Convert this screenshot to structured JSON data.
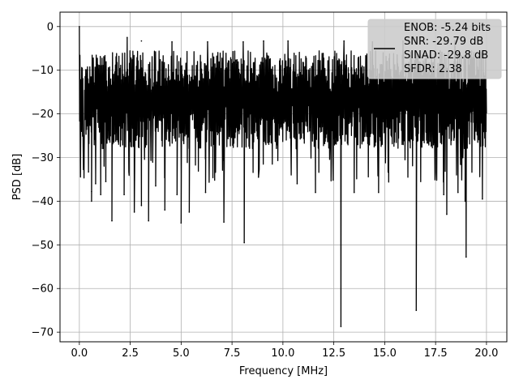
{
  "chart_data": {
    "type": "line",
    "title": "",
    "xlabel": "Frequency [MHz]",
    "ylabel": "PSD [dB]",
    "xlim": [
      -0.95,
      21.0
    ],
    "ylim": [
      -72.2,
      3.3
    ],
    "x_ticks": [
      0.0,
      2.5,
      5.0,
      7.5,
      10.0,
      12.5,
      15.0,
      17.5,
      20.0
    ],
    "x_tick_labels": [
      "0.0",
      "2.5",
      "5.0",
      "7.5",
      "10.0",
      "12.5",
      "15.0",
      "17.5",
      "20.0"
    ],
    "y_ticks": [
      0,
      -10,
      -20,
      -30,
      -40,
      -50,
      -60,
      -70
    ],
    "y_tick_labels": [
      "0",
      "−10",
      "−20",
      "−30",
      "−40",
      "−50",
      "−60",
      "−70"
    ],
    "grid": true,
    "legend_position": "top-right",
    "legend_entries": [
      "ENOB: -5.24 bits",
      "SNR: -29.79 dB",
      "SINAD: -29.8 dB",
      "SFDR: 2.38"
    ],
    "series": [
      {
        "color": "#000000",
        "x_range": [
          0.0,
          20.0
        ],
        "y_peak": 0.0,
        "upper_envelope_approx": -5.5,
        "lower_envelope_approx": -30.0,
        "notable_dips": [
          {
            "x": 0.45,
            "y": -33.3
          },
          {
            "x": 0.6,
            "y": -37.8
          },
          {
            "x": 0.8,
            "y": -36.0
          },
          {
            "x": 0.6,
            "y": -40.0
          },
          {
            "x": 1.05,
            "y": -38.5
          },
          {
            "x": 1.3,
            "y": -35.5
          },
          {
            "x": 1.6,
            "y": -44.5
          },
          {
            "x": 2.2,
            "y": -38.5
          },
          {
            "x": 2.7,
            "y": -42.5
          },
          {
            "x": 3.05,
            "y": -41.0
          },
          {
            "x": 3.4,
            "y": -44.5
          },
          {
            "x": 3.75,
            "y": -36.5
          },
          {
            "x": 4.2,
            "y": -42.0
          },
          {
            "x": 4.8,
            "y": -38.5
          },
          {
            "x": 5.0,
            "y": -45.0
          },
          {
            "x": 5.4,
            "y": -42.5
          },
          {
            "x": 6.2,
            "y": -38.0
          },
          {
            "x": 7.1,
            "y": -44.8
          },
          {
            "x": 8.1,
            "y": -49.5
          },
          {
            "x": 8.8,
            "y": -34.5
          },
          {
            "x": 10.7,
            "y": -36.0
          },
          {
            "x": 11.6,
            "y": -38.0
          },
          {
            "x": 12.85,
            "y": -68.7
          },
          {
            "x": 13.5,
            "y": -38.0
          },
          {
            "x": 14.7,
            "y": -38.0
          },
          {
            "x": 16.55,
            "y": -65.0
          },
          {
            "x": 17.9,
            "y": -38.5
          },
          {
            "x": 18.05,
            "y": -43.0
          },
          {
            "x": 18.6,
            "y": -38.0
          },
          {
            "x": 18.95,
            "y": -40.0
          },
          {
            "x": 19.0,
            "y": -52.8
          },
          {
            "x": 19.8,
            "y": -39.5
          }
        ],
        "notable_peaks": [
          {
            "x": 0.0,
            "y": 0.0
          },
          {
            "x": 2.35,
            "y": -2.5
          },
          {
            "x": 3.05,
            "y": -3.3
          },
          {
            "x": 4.55,
            "y": -3.5
          },
          {
            "x": 6.3,
            "y": -3.5
          },
          {
            "x": 8.05,
            "y": -3.5
          },
          {
            "x": 9.05,
            "y": -3.3
          },
          {
            "x": 10.25,
            "y": -3.3
          },
          {
            "x": 13.0,
            "y": -3.3
          },
          {
            "x": 14.4,
            "y": -3.5
          },
          {
            "x": 15.9,
            "y": -3.3
          },
          {
            "x": 18.45,
            "y": -3.3
          }
        ]
      }
    ]
  }
}
